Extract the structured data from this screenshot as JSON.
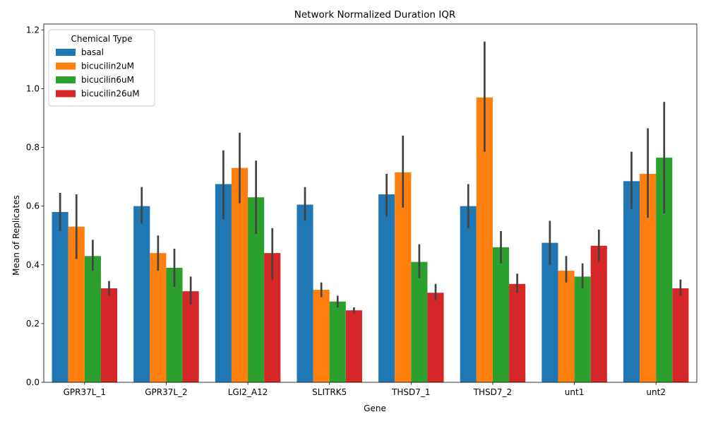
{
  "chart_data": {
    "type": "bar",
    "title": "Network Normalized Duration IQR",
    "xlabel": "Gene",
    "ylabel": "Mean of Replicates",
    "ylim": [
      0,
      1.22
    ],
    "yticks": [
      0.0,
      0.2,
      0.4,
      0.6,
      0.8,
      1.0,
      1.2
    ],
    "ytick_labels": [
      "0.0",
      "0.2",
      "0.4",
      "0.6",
      "0.8",
      "1.0",
      "1.2"
    ],
    "grid": false,
    "legend": {
      "title": "Chemical Type",
      "placement": "top-left"
    },
    "categories": [
      "GPR37L_1",
      "GPR37L_2",
      "LGI2_A12",
      "SLITRK5",
      "THSD7_1",
      "THSD7_2",
      "unt1",
      "unt2"
    ],
    "series": [
      {
        "name": "basal",
        "color": "#1f77b4",
        "values": [
          0.58,
          0.6,
          0.675,
          0.605,
          0.64,
          0.6,
          0.475,
          0.685
        ],
        "error_low": [
          0.515,
          0.54,
          0.555,
          0.55,
          0.565,
          0.525,
          0.4,
          0.59
        ],
        "error_high": [
          0.645,
          0.665,
          0.79,
          0.665,
          0.71,
          0.675,
          0.55,
          0.785
        ]
      },
      {
        "name": "bicucilin2uM",
        "color": "#ff7f0e",
        "values": [
          0.53,
          0.44,
          0.73,
          0.315,
          0.715,
          0.97,
          0.38,
          0.71
        ],
        "error_low": [
          0.42,
          0.38,
          0.61,
          0.29,
          0.595,
          0.785,
          0.34,
          0.56
        ],
        "error_high": [
          0.64,
          0.5,
          0.85,
          0.34,
          0.84,
          1.16,
          0.43,
          0.865
        ]
      },
      {
        "name": "bicucilin6uM",
        "color": "#2ca02c",
        "values": [
          0.43,
          0.39,
          0.63,
          0.275,
          0.41,
          0.46,
          0.36,
          0.765
        ],
        "error_low": [
          0.38,
          0.325,
          0.505,
          0.255,
          0.355,
          0.405,
          0.32,
          0.575
        ],
        "error_high": [
          0.485,
          0.455,
          0.755,
          0.295,
          0.47,
          0.515,
          0.405,
          0.955
        ]
      },
      {
        "name": "bicucilin26uM",
        "color": "#d62728",
        "values": [
          0.32,
          0.31,
          0.44,
          0.245,
          0.305,
          0.335,
          0.465,
          0.32
        ],
        "error_low": [
          0.295,
          0.265,
          0.35,
          0.235,
          0.28,
          0.305,
          0.41,
          0.295
        ],
        "error_high": [
          0.345,
          0.36,
          0.525,
          0.255,
          0.335,
          0.37,
          0.52,
          0.35
        ]
      }
    ]
  }
}
